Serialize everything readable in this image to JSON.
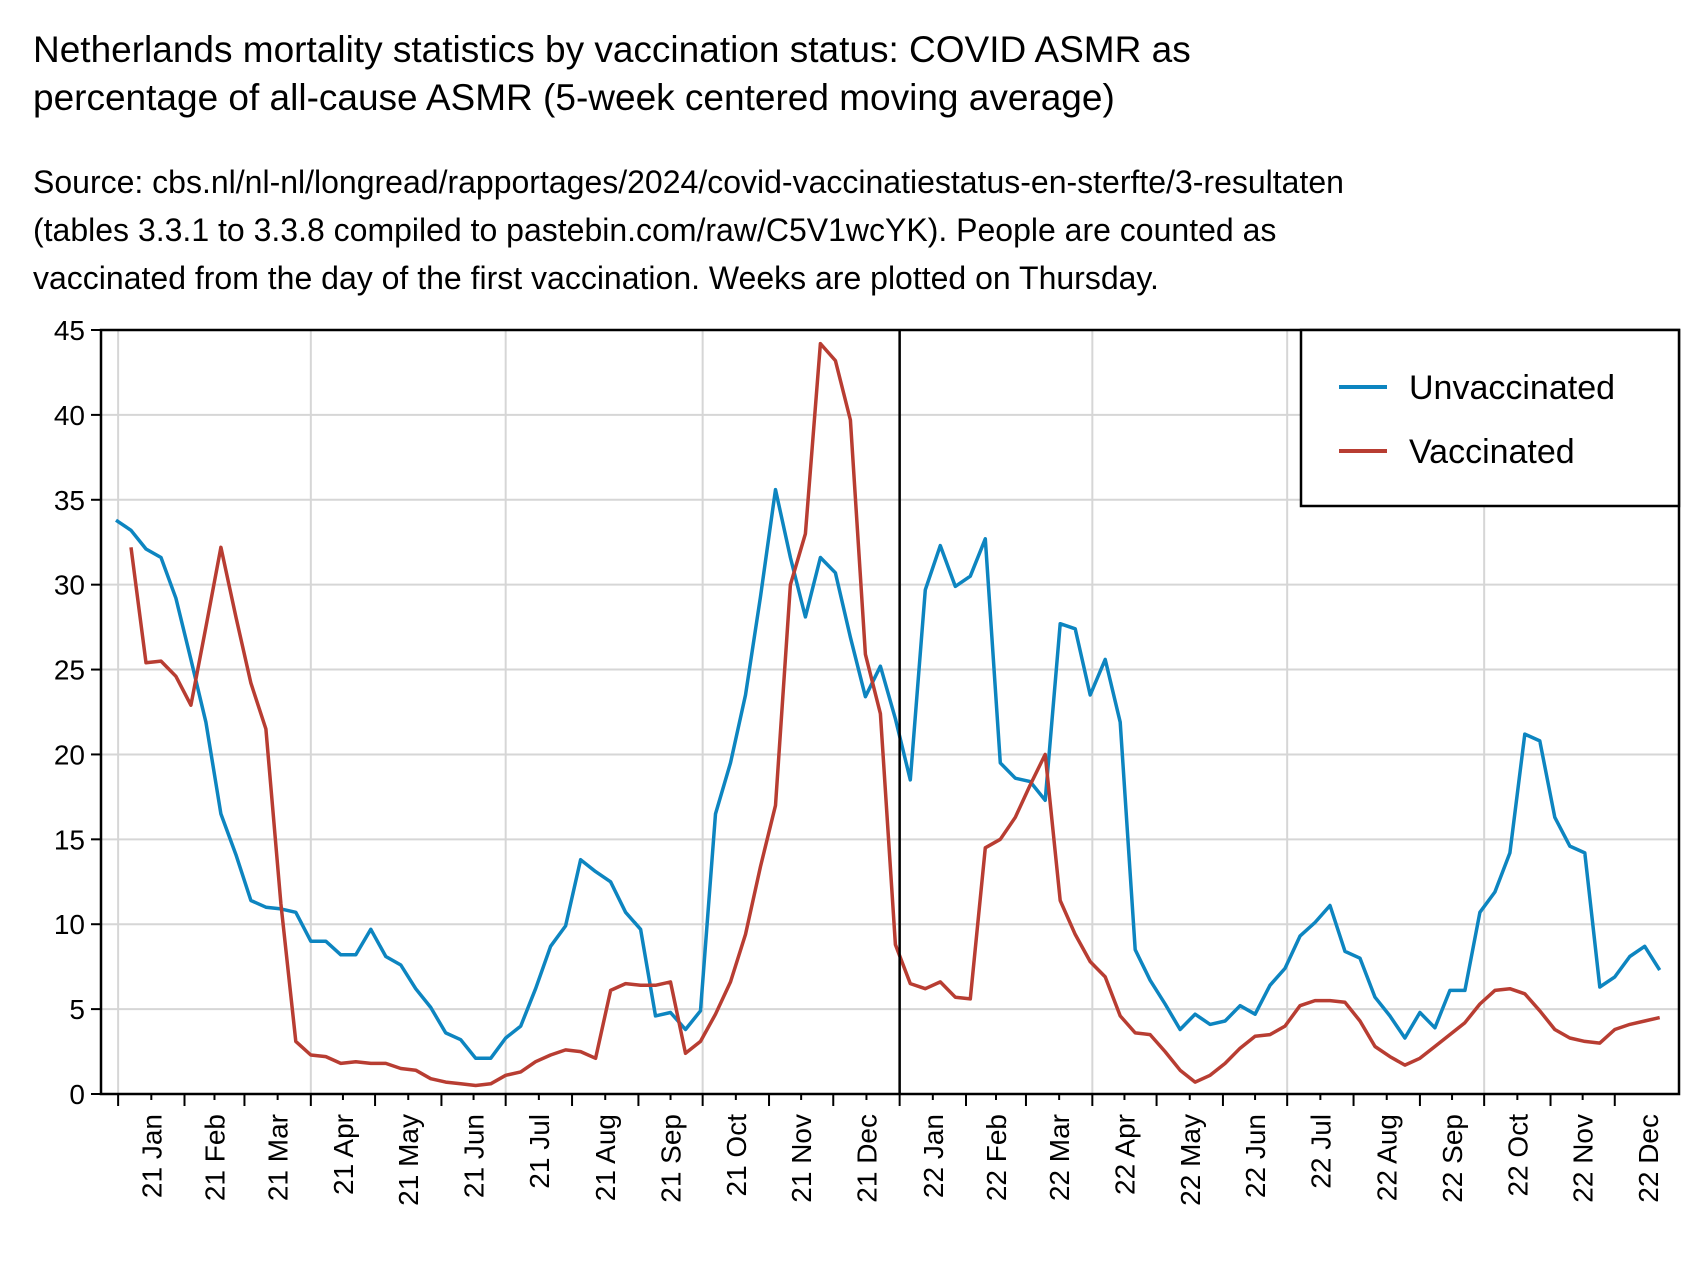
{
  "title": "Netherlands mortality statistics by vaccination status: COVID ASMR as\npercentage of all-cause ASMR (5-week centered moving average)",
  "subtitle": "Source: cbs.nl/nl-nl/longread/rapportages/2024/covid-vaccinatiestatus-en-sterfte/3-resultaten\n(tables 3.3.1 to 3.3.8 compiled to pastebin.com/raw/C5V1wcYK). People are counted as\nvaccinated from the day of the first vaccination. Weeks are plotted on Thursday.",
  "chart_data": {
    "type": "line",
    "title": "Netherlands mortality statistics by vaccination status: COVID ASMR as percentage of all-cause ASMR (5-week centered moving average)",
    "xlabel": "",
    "ylabel": "",
    "ylim": [
      0,
      45
    ],
    "xlim": [
      "2020-12-24",
      "2022-12-31"
    ],
    "yticks": [
      0,
      5,
      10,
      15,
      20,
      25,
      30,
      35,
      40,
      45
    ],
    "grid": true,
    "legend_position": "top-right",
    "year_divider": "2022-01-01",
    "xticks": [
      {
        "label": "21 Jan",
        "date": "2021-01-01"
      },
      {
        "label": "21 Feb",
        "date": "2021-02-01"
      },
      {
        "label": "21 Mar",
        "date": "2021-03-01"
      },
      {
        "label": "21 Apr",
        "date": "2021-04-01"
      },
      {
        "label": "21 May",
        "date": "2021-05-01"
      },
      {
        "label": "21 Jun",
        "date": "2021-06-01"
      },
      {
        "label": "21 Jul",
        "date": "2021-07-01"
      },
      {
        "label": "21 Aug",
        "date": "2021-08-01"
      },
      {
        "label": "21 Sep",
        "date": "2021-09-01"
      },
      {
        "label": "21 Oct",
        "date": "2021-10-01"
      },
      {
        "label": "21 Nov",
        "date": "2021-11-01"
      },
      {
        "label": "21 Dec",
        "date": "2021-12-01"
      },
      {
        "label": "22 Jan",
        "date": "2022-01-01"
      },
      {
        "label": "22 Feb",
        "date": "2022-02-01"
      },
      {
        "label": "22 Mar",
        "date": "2022-03-01"
      },
      {
        "label": "22 Apr",
        "date": "2022-04-01"
      },
      {
        "label": "22 May",
        "date": "2022-05-01"
      },
      {
        "label": "22 Jun",
        "date": "2022-06-01"
      },
      {
        "label": "22 Jul",
        "date": "2022-07-01"
      },
      {
        "label": "22 Aug",
        "date": "2022-08-01"
      },
      {
        "label": "22 Sep",
        "date": "2022-09-01"
      },
      {
        "label": "22 Oct",
        "date": "2022-10-01"
      },
      {
        "label": "22 Nov",
        "date": "2022-11-01"
      },
      {
        "label": "22 Dec",
        "date": "2022-12-01"
      }
    ],
    "colors": {
      "unvaccinated": "#0d85c0",
      "vaccinated": "#b83d32",
      "grid": "#d6d6d6",
      "axis": "#000000"
    },
    "series": [
      {
        "name": "Unvaccinated",
        "color": "#0d85c0",
        "start_date": "2020-12-31",
        "step_days": 7,
        "values": [
          33.8,
          33.2,
          32.1,
          31.6,
          29.2,
          25.6,
          21.9,
          16.5,
          14.1,
          11.4,
          11.0,
          10.9,
          10.7,
          9.0,
          9.0,
          8.2,
          8.2,
          9.7,
          8.1,
          7.6,
          6.2,
          5.1,
          3.6,
          3.2,
          2.1,
          2.1,
          3.3,
          4.0,
          6.2,
          8.7,
          9.9,
          13.8,
          13.1,
          12.5,
          10.7,
          9.7,
          4.6,
          4.8,
          3.8,
          4.9,
          16.5,
          19.5,
          23.5,
          29.3,
          35.6,
          31.6,
          28.1,
          31.6,
          30.7,
          26.9,
          23.4,
          25.2,
          22.1,
          18.5,
          29.7,
          32.3,
          29.9,
          30.5,
          32.7,
          19.5,
          18.6,
          18.4,
          17.3,
          27.7,
          27.4,
          23.5,
          25.6,
          21.9,
          8.5,
          6.7,
          5.3,
          3.8,
          4.7,
          4.1,
          4.3,
          5.2,
          4.7,
          6.4,
          7.4,
          9.3,
          10.1,
          11.1,
          8.4,
          8.0,
          5.7,
          4.6,
          3.3,
          4.8,
          3.9,
          6.1,
          6.1,
          10.7,
          11.9,
          14.2,
          21.2,
          20.8,
          16.3,
          14.6,
          14.2,
          6.3,
          6.9,
          8.1,
          8.7,
          7.3
        ]
      },
      {
        "name": "Vaccinated",
        "color": "#b83d32",
        "start_date": "2021-01-07",
        "step_days": 7,
        "values": [
          32.2,
          25.4,
          25.5,
          24.6,
          22.9,
          27.5,
          32.2,
          28.1,
          24.2,
          21.5,
          11.2,
          3.1,
          2.3,
          2.2,
          1.8,
          1.9,
          1.8,
          1.8,
          1.5,
          1.4,
          0.9,
          0.7,
          0.6,
          0.5,
          0.6,
          1.1,
          1.3,
          1.9,
          2.3,
          2.6,
          2.5,
          2.1,
          6.1,
          6.5,
          6.4,
          6.4,
          6.6,
          2.4,
          3.1,
          4.7,
          6.6,
          9.4,
          13.4,
          17.0,
          30.0,
          33.0,
          44.2,
          43.2,
          39.7,
          25.9,
          22.4,
          8.8,
          6.5,
          6.2,
          6.6,
          5.7,
          5.6,
          14.5,
          15.0,
          16.3,
          18.2,
          20.0,
          11.4,
          9.4,
          7.8,
          6.9,
          4.6,
          3.6,
          3.5,
          2.5,
          1.4,
          0.7,
          1.1,
          1.8,
          2.7,
          3.4,
          3.5,
          4.0,
          5.2,
          5.5,
          5.5,
          5.4,
          4.3,
          2.8,
          2.2,
          1.7,
          2.1,
          2.8,
          3.5,
          4.2,
          5.3,
          6.1,
          6.2,
          5.9,
          4.9,
          3.8,
          3.3,
          3.1,
          3.0,
          3.8,
          4.1,
          4.3,
          4.5
        ]
      }
    ]
  }
}
